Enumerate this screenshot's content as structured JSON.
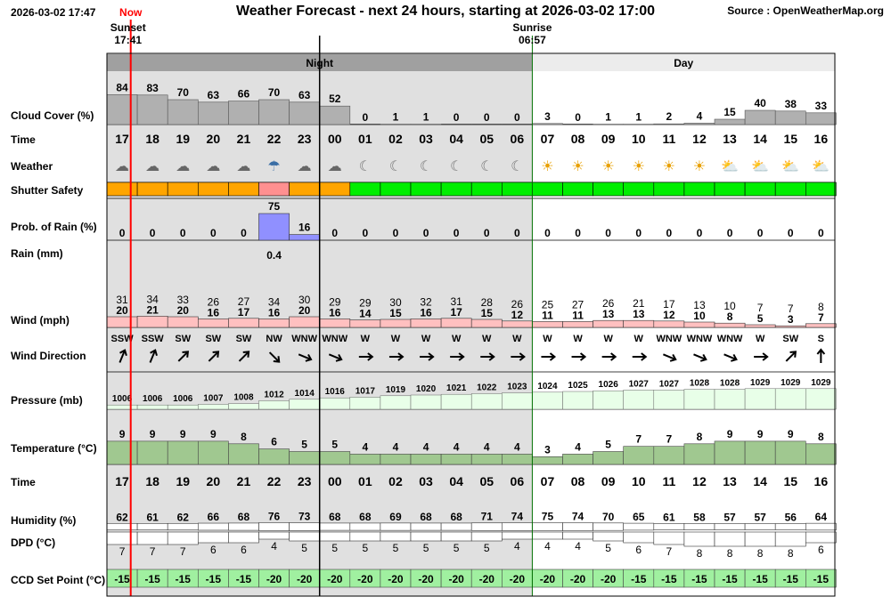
{
  "header": {
    "timestamp": "2026-03-02 17:47",
    "title": "Weather Forecast - next 24 hours, starting at 2026-03-02 17:00",
    "source": "Source : OpenWeatherMap.org"
  },
  "chart_data": {
    "type": "table",
    "now_label": "Now",
    "sunset": {
      "label": "Sunset",
      "time": "17:41"
    },
    "sunrise": {
      "label": "Sunrise",
      "time": "06:57"
    },
    "periods": [
      "Night",
      "Day"
    ],
    "row_labels": {
      "cloud": "Cloud Cover (%)",
      "time": "Time",
      "weather": "Weather",
      "shutter": "Shutter Safety",
      "rainprob": "Prob. of Rain (%)",
      "rainmm": "Rain (mm)",
      "wind": "Wind (mph)",
      "winddir": "Wind Direction",
      "pressure": "Pressure (mb)",
      "temperature": "Temperature (°C)",
      "time2": "Time",
      "humidity": "Humidity (%)",
      "dpd": "DPD (°C)",
      "ccd": "CCD Set Point (°C)"
    },
    "hours": [
      "17",
      "18",
      "19",
      "20",
      "21",
      "22",
      "23",
      "00",
      "01",
      "02",
      "03",
      "04",
      "05",
      "06",
      "07",
      "08",
      "09",
      "10",
      "11",
      "12",
      "13",
      "14",
      "15",
      "16"
    ],
    "cloud_cover": [
      84,
      83,
      70,
      63,
      66,
      70,
      63,
      52,
      0,
      1,
      1,
      0,
      0,
      0,
      3,
      0,
      1,
      1,
      2,
      4,
      15,
      40,
      38,
      33
    ],
    "weather_icons": [
      "night-partly-cloudy-icon",
      "night-partly-cloudy-icon",
      "night-partly-cloudy-icon",
      "night-partly-cloudy-icon",
      "night-partly-cloudy-icon",
      "night-rain-icon",
      "night-partly-cloudy-icon",
      "night-partly-cloudy-icon",
      "moon-icon",
      "moon-icon",
      "moon-icon",
      "moon-icon",
      "moon-icon",
      "moon-icon",
      "sun-icon",
      "sun-icon",
      "sun-icon",
      "sun-icon",
      "sun-icon",
      "sun-icon",
      "sun-cloud-icon",
      "sun-cloud-icon",
      "sun-cloud-icon",
      "sun-cloud-icon"
    ],
    "shutter_safety": [
      "orange",
      "orange",
      "orange",
      "orange",
      "orange",
      "pink",
      "orange",
      "orange",
      "green",
      "green",
      "green",
      "green",
      "green",
      "green",
      "green",
      "green",
      "green",
      "green",
      "green",
      "green",
      "green",
      "green",
      "green",
      "green"
    ],
    "rain_probability": [
      0,
      0,
      0,
      0,
      0,
      75,
      16,
      0,
      0,
      0,
      0,
      0,
      0,
      0,
      0,
      0,
      0,
      0,
      0,
      0,
      0,
      0,
      0,
      0
    ],
    "rain_mm": [
      null,
      null,
      null,
      null,
      null,
      0.4,
      null,
      null,
      null,
      null,
      null,
      null,
      null,
      null,
      null,
      null,
      null,
      null,
      null,
      null,
      null,
      null,
      null,
      null
    ],
    "wind_gust": [
      31,
      34,
      33,
      26,
      27,
      34,
      30,
      29,
      29,
      30,
      32,
      31,
      28,
      26,
      25,
      27,
      26,
      21,
      17,
      13,
      10,
      7,
      7,
      8
    ],
    "wind_speed": [
      20,
      21,
      20,
      16,
      17,
      16,
      20,
      16,
      14,
      15,
      16,
      17,
      15,
      12,
      11,
      11,
      13,
      13,
      12,
      10,
      8,
      5,
      3,
      7
    ],
    "wind_direction": [
      "SSW",
      "SSW",
      "SW",
      "SW",
      "SW",
      "NW",
      "WNW",
      "WNW",
      "W",
      "W",
      "W",
      "W",
      "W",
      "W",
      "W",
      "W",
      "W",
      "W",
      "WNW",
      "WNW",
      "WNW",
      "W",
      "SW",
      "S"
    ],
    "pressure": [
      1006,
      1006,
      1006,
      1007,
      1008,
      1012,
      1014,
      1016,
      1017,
      1019,
      1020,
      1021,
      1022,
      1023,
      1024,
      1025,
      1026,
      1027,
      1027,
      1028,
      1028,
      1029,
      1029,
      1029
    ],
    "temperature": [
      9,
      9,
      9,
      9,
      8,
      6,
      5,
      5,
      4,
      4,
      4,
      4,
      4,
      4,
      3,
      4,
      5,
      7,
      7,
      8,
      9,
      9,
      9,
      8
    ],
    "humidity": [
      62,
      61,
      62,
      66,
      68,
      76,
      73,
      68,
      68,
      69,
      68,
      68,
      71,
      74,
      75,
      74,
      70,
      65,
      61,
      58,
      57,
      57,
      56,
      64
    ],
    "dpd": [
      7,
      7,
      7,
      6,
      6,
      4,
      5,
      5,
      5,
      5,
      5,
      5,
      5,
      4,
      4,
      4,
      5,
      6,
      7,
      8,
      8,
      8,
      8,
      6
    ],
    "ccd_set_point": [
      -15,
      -15,
      -15,
      -15,
      -15,
      -20,
      -20,
      -20,
      -20,
      -20,
      -20,
      -20,
      -20,
      -20,
      -20,
      -20,
      -20,
      -15,
      -15,
      -15,
      -15,
      -15,
      -15,
      -15
    ],
    "colors": {
      "night_bg": "#e0e0e0",
      "period_bar": "#a0a0a0",
      "day_bar": "#ececec",
      "cloud_bar": "#b0b0b0",
      "shutter_orange": "#ffa500",
      "shutter_pink": "#ff9090",
      "shutter_green": "#00ee00",
      "rain_bar": "#9090ff",
      "wind_bar": "#ffc0c0",
      "pressure_bar": "#e8ffe8",
      "temp_bar": "#a0c890",
      "ccd_bar": "#a0f0a0",
      "now_line": "#ff0000",
      "day_border": "#007000"
    }
  }
}
